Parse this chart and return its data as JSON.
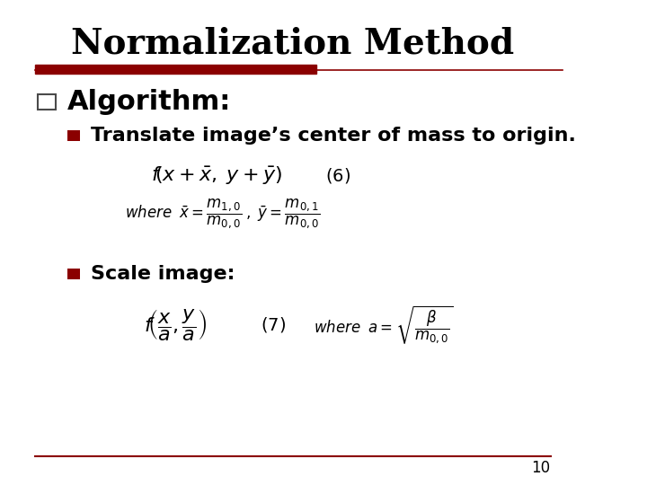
{
  "title": "Normalization Method",
  "title_fontsize": 28,
  "title_color": "#000000",
  "bg_color": "#ffffff",
  "red_bar_color": "#8B0000",
  "outer_bullet_color": "#4a4a4a",
  "algorithm_text": "Algorithm:",
  "algorithm_fontsize": 22,
  "bullet1_text": "Translate image’s center of mass to origin.",
  "bullet1_fontsize": 16,
  "bullet2_text": "Scale image:",
  "bullet2_fontsize": 16,
  "page_number": "10"
}
